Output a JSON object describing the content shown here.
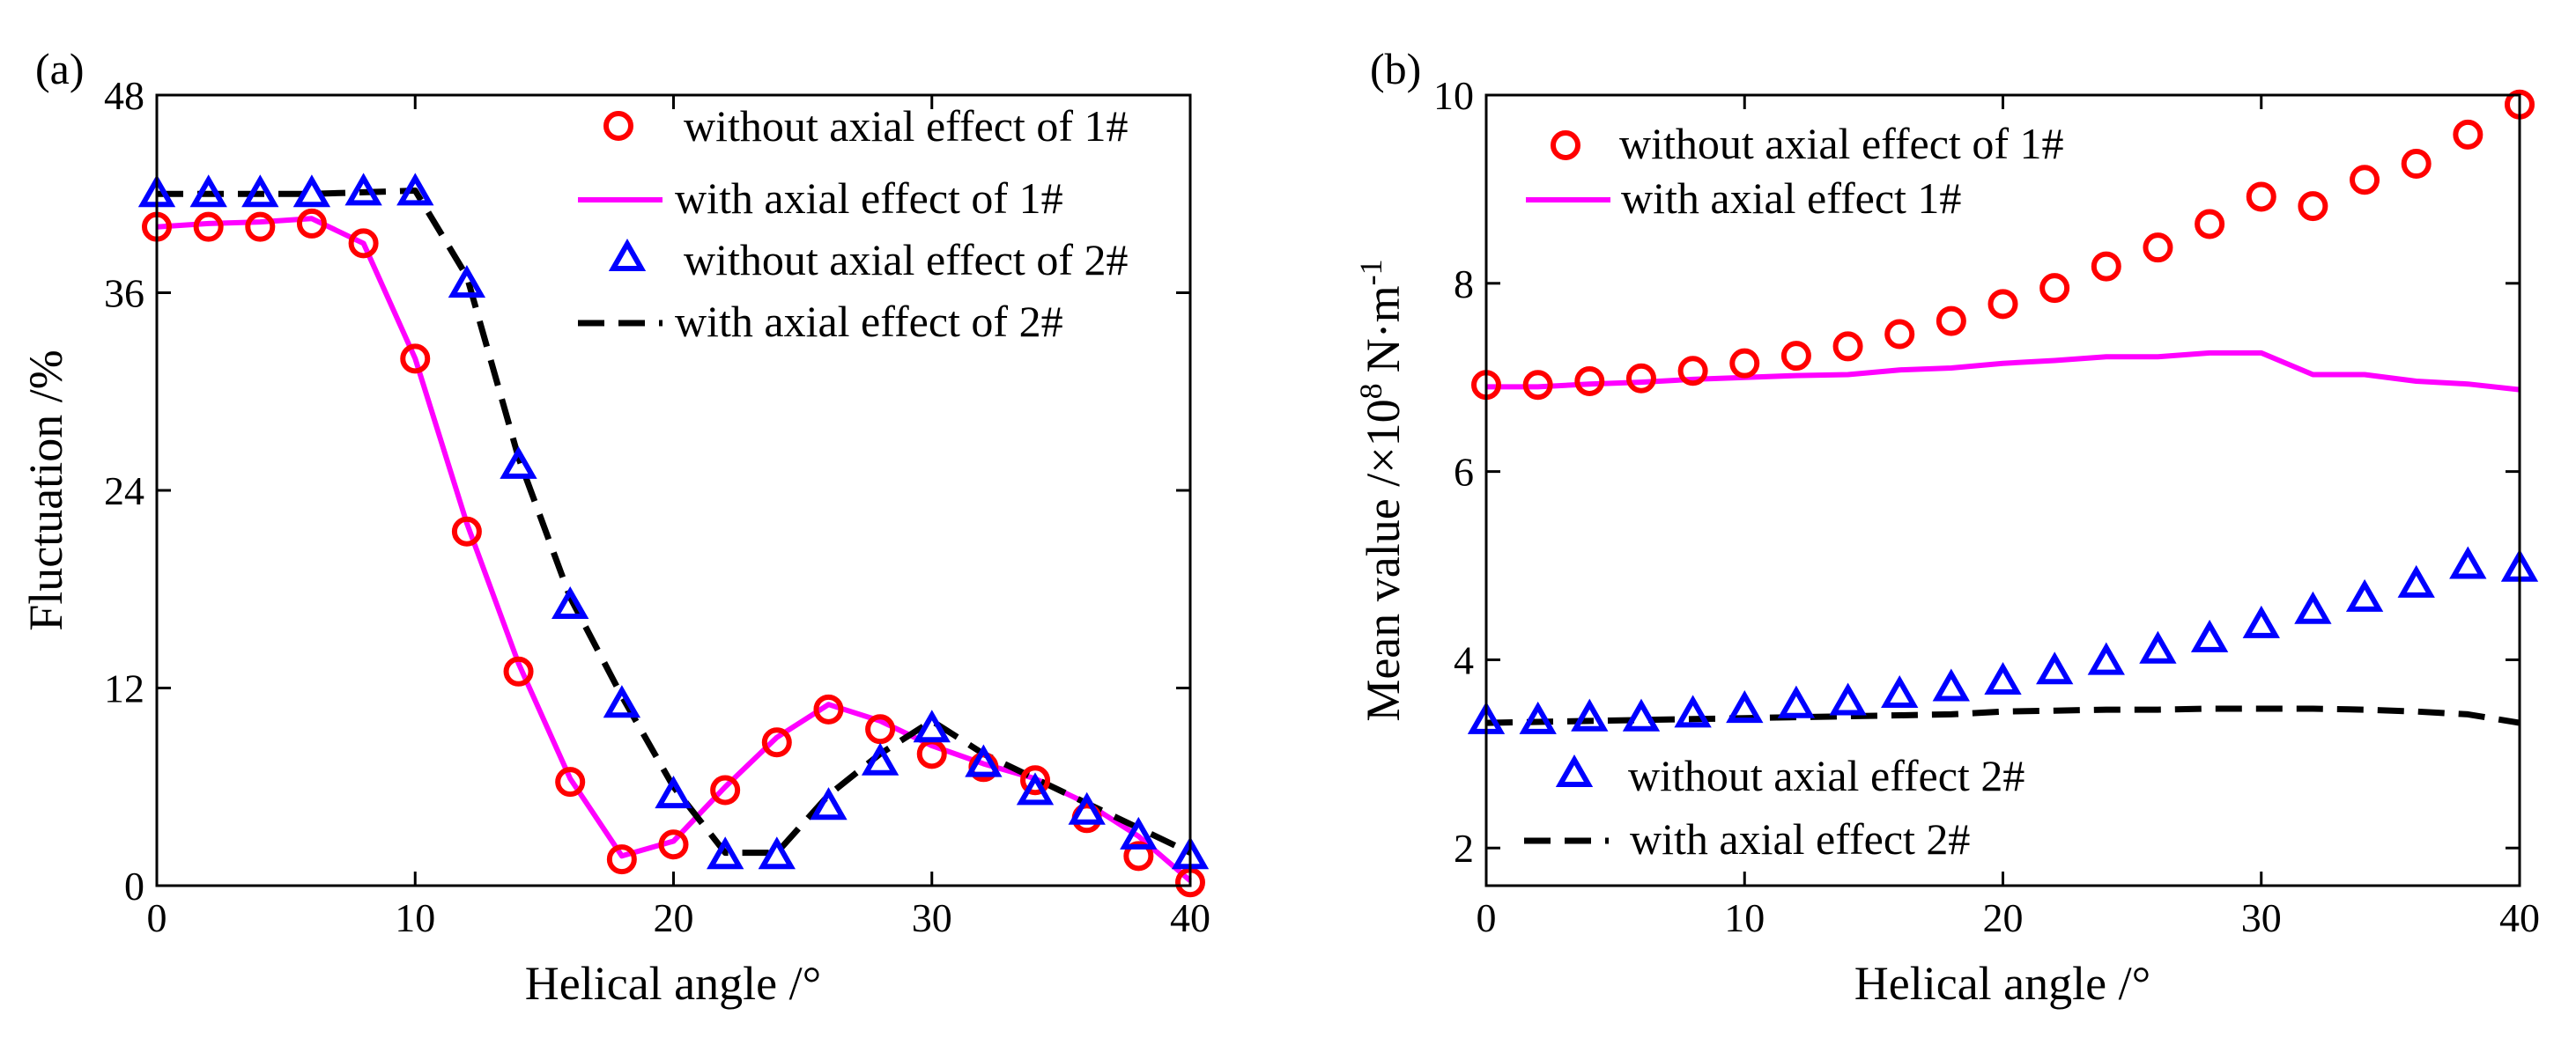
{
  "chart_data": [
    {
      "panel_label": "(a)",
      "type": "line",
      "xlabel": "Helical angle /°",
      "ylabel": "Fluctuation /%",
      "xlim": [
        0,
        40
      ],
      "ylim": [
        0,
        48
      ],
      "xticks": [
        0,
        10,
        20,
        30,
        40
      ],
      "yticks": [
        0,
        12,
        24,
        36,
        48
      ],
      "legend_position": "top-right",
      "series": [
        {
          "name": "without axial effect of 1#",
          "style": "circle-markers",
          "color": "#ff0000",
          "x": [
            0,
            2,
            4,
            6,
            8,
            10,
            12,
            14,
            16,
            18,
            20,
            22,
            24,
            26,
            28,
            30,
            32,
            34,
            36,
            38,
            40
          ],
          "y": [
            40,
            40,
            40,
            40.2,
            39,
            32,
            21.5,
            13,
            6.3,
            1.6,
            2.5,
            5.8,
            8.7,
            10.7,
            9.5,
            8,
            7.2,
            6.4,
            4.1,
            1.8,
            0.2
          ]
        },
        {
          "name": "with axial effect of 1#",
          "style": "solid-line",
          "color": "#ff00ff",
          "x": [
            0,
            2,
            4,
            6,
            8,
            10,
            12,
            14,
            16,
            18,
            20,
            22,
            24,
            26,
            28,
            30,
            32,
            34,
            36,
            38,
            40
          ],
          "y": [
            40,
            40.2,
            40.3,
            40.5,
            39,
            32,
            22,
            13.5,
            6.5,
            1.8,
            2.7,
            6,
            9,
            11,
            10,
            8.5,
            7.4,
            6.5,
            5,
            3,
            0.3
          ]
        },
        {
          "name": "without axial effect of 2#",
          "style": "triangle-markers",
          "color": "#0000ff",
          "x": [
            0,
            2,
            4,
            6,
            8,
            10,
            12,
            14,
            16,
            18,
            20,
            22,
            24,
            26,
            28,
            30,
            32,
            34,
            36,
            38,
            40
          ],
          "y": [
            42,
            42,
            42,
            42,
            42.1,
            42.1,
            36.5,
            25.5,
            17,
            11,
            5.5,
            1.8,
            1.8,
            4.8,
            7.5,
            9.5,
            7.4,
            5.7,
            4.5,
            3,
            1.8
          ]
        },
        {
          "name": "with axial effect of 2#",
          "style": "dashed-line",
          "color": "#000000",
          "x": [
            0,
            2,
            4,
            6,
            8,
            10,
            12,
            14,
            16,
            18,
            20,
            22,
            24,
            26,
            28,
            30,
            32,
            34,
            36,
            38,
            40
          ],
          "y": [
            42,
            42,
            42,
            42,
            42.1,
            42.2,
            37,
            26,
            17.5,
            11.5,
            6,
            2,
            2,
            5.5,
            8,
            10,
            8,
            6.5,
            5,
            3.5,
            2
          ]
        }
      ]
    },
    {
      "panel_label": "(b)",
      "type": "line",
      "xlabel": "Helical angle /°",
      "ylabel": "Mean value /×10",
      "ylabel_superscript": "8",
      "ylabel_unit": "N·m",
      "ylabel_unit_superscript": "-1",
      "xlim": [
        0,
        40
      ],
      "ylim": [
        1.6,
        10
      ],
      "xticks": [
        0,
        10,
        20,
        30,
        40
      ],
      "yticks": [
        2,
        4,
        6,
        8,
        10
      ],
      "legend_position": "top-left and bottom-left",
      "series": [
        {
          "name": "without axial effect of 1#",
          "style": "circle-markers",
          "color": "#ff0000",
          "x": [
            0,
            2,
            4,
            6,
            8,
            10,
            12,
            14,
            16,
            18,
            20,
            22,
            24,
            26,
            28,
            30,
            32,
            34,
            36,
            38,
            40
          ],
          "y": [
            6.92,
            6.92,
            6.96,
            6.99,
            7.07,
            7.15,
            7.23,
            7.33,
            7.46,
            7.6,
            7.78,
            7.95,
            8.18,
            8.38,
            8.63,
            8.92,
            8.82,
            9.1,
            9.27,
            9.58,
            9.9
          ]
        },
        {
          "name": "with axial effect 1#",
          "style": "solid-line",
          "color": "#ff00ff",
          "x": [
            0,
            2,
            4,
            6,
            8,
            10,
            12,
            14,
            16,
            18,
            20,
            22,
            24,
            26,
            28,
            30,
            32,
            34,
            36,
            38,
            40
          ],
          "y": [
            6.9,
            6.9,
            6.93,
            6.95,
            6.98,
            7.0,
            7.02,
            7.03,
            7.08,
            7.1,
            7.15,
            7.18,
            7.22,
            7.22,
            7.26,
            7.26,
            7.03,
            7.03,
            6.96,
            6.93,
            6.87
          ]
        },
        {
          "name": "without axial effect 2#",
          "style": "triangle-markers",
          "color": "#0000ff",
          "x": [
            0,
            2,
            4,
            6,
            8,
            10,
            12,
            14,
            16,
            18,
            20,
            22,
            24,
            26,
            28,
            30,
            32,
            34,
            36,
            38,
            40
          ],
          "y": [
            3.35,
            3.35,
            3.38,
            3.38,
            3.42,
            3.47,
            3.52,
            3.55,
            3.63,
            3.7,
            3.77,
            3.88,
            3.98,
            4.1,
            4.22,
            4.37,
            4.52,
            4.65,
            4.8,
            5.0,
            4.97
          ]
        },
        {
          "name": "with axial effect 2#",
          "style": "dashed-line",
          "color": "#000000",
          "x": [
            0,
            2,
            4,
            6,
            8,
            10,
            12,
            14,
            16,
            18,
            20,
            22,
            24,
            26,
            28,
            30,
            32,
            34,
            36,
            38,
            40
          ],
          "y": [
            3.33,
            3.34,
            3.35,
            3.36,
            3.37,
            3.38,
            3.39,
            3.4,
            3.41,
            3.42,
            3.45,
            3.46,
            3.47,
            3.47,
            3.48,
            3.48,
            3.48,
            3.47,
            3.45,
            3.42,
            3.33
          ]
        }
      ]
    }
  ]
}
